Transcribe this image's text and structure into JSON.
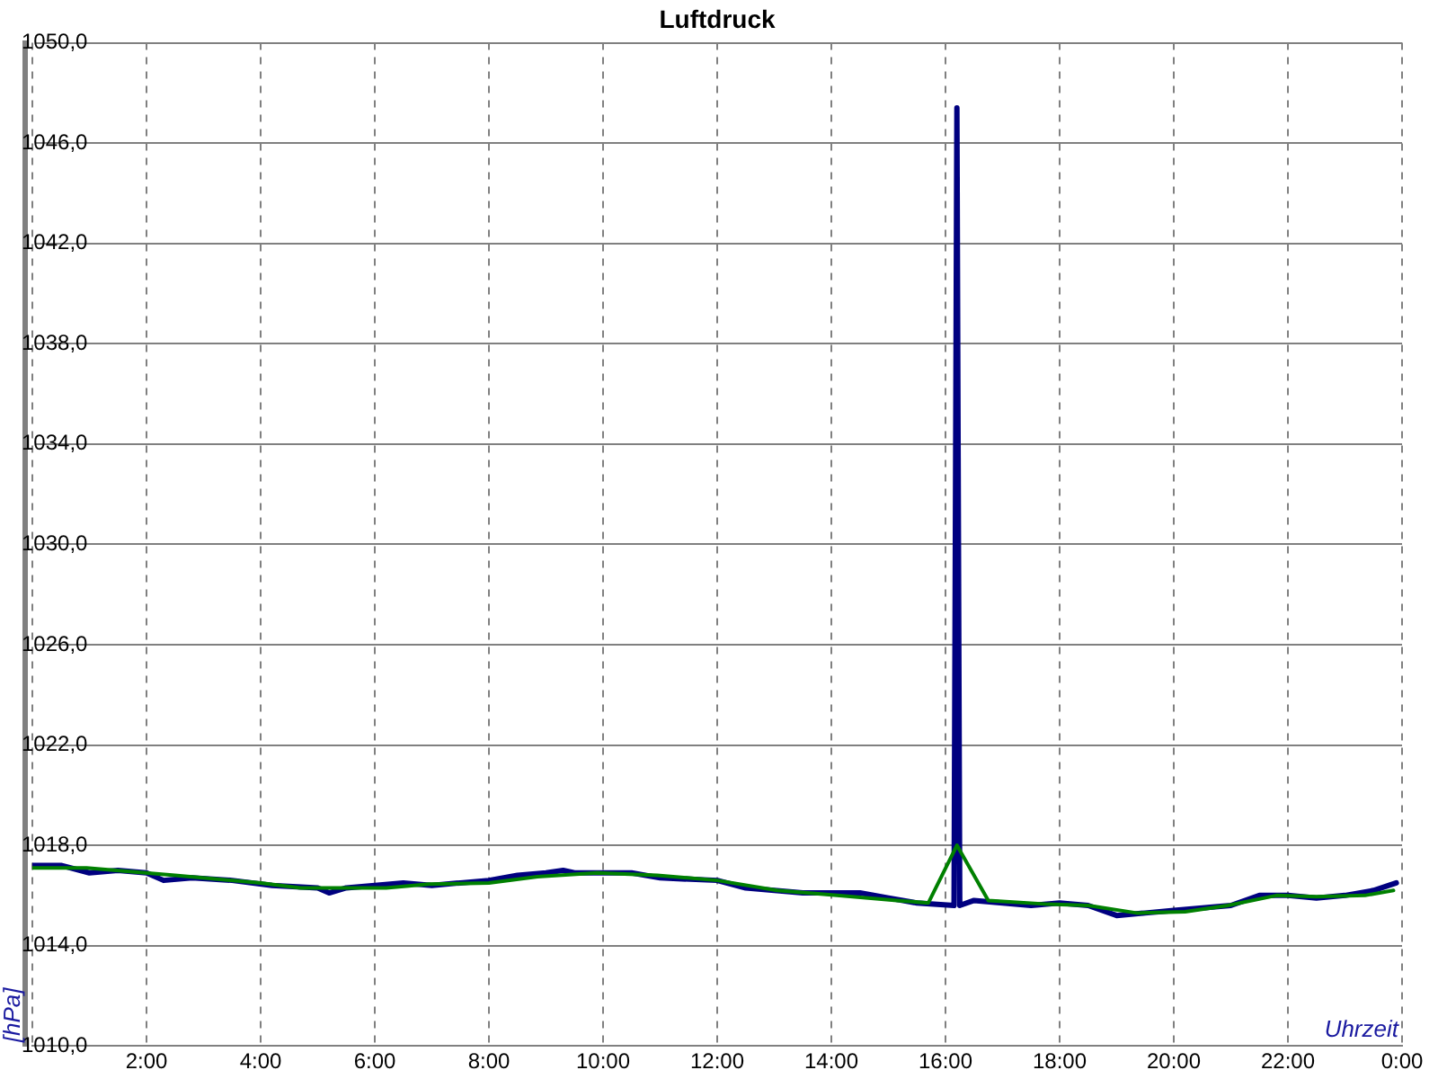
{
  "chart_data": {
    "type": "line",
    "title": "Luftdruck",
    "xlabel": "Uhrzeit",
    "ylabel": "[hPa]",
    "xlim": [
      0,
      24
    ],
    "xticks": [
      {
        "value": 0,
        "label": null
      },
      {
        "value": 2,
        "label": "2:00"
      },
      {
        "value": 4,
        "label": "4:00"
      },
      {
        "value": 6,
        "label": "6:00"
      },
      {
        "value": 8,
        "label": "8:00"
      },
      {
        "value": 10,
        "label": "10:00"
      },
      {
        "value": 12,
        "label": "12:00"
      },
      {
        "value": 14,
        "label": "14:00"
      },
      {
        "value": 16,
        "label": "16:00"
      },
      {
        "value": 18,
        "label": "18:00"
      },
      {
        "value": 20,
        "label": "20:00"
      },
      {
        "value": 22,
        "label": "22:00"
      },
      {
        "value": 24,
        "label": "0:00"
      }
    ],
    "ylim": [
      1010,
      1050
    ],
    "yticks": [
      {
        "value": 1010,
        "label": "1010,0"
      },
      {
        "value": 1014,
        "label": "1014,0"
      },
      {
        "value": 1018,
        "label": "1018,0"
      },
      {
        "value": 1022,
        "label": "1022,0"
      },
      {
        "value": 1026,
        "label": "1026,0"
      },
      {
        "value": 1030,
        "label": "1030,0"
      },
      {
        "value": 1034,
        "label": "1034,0"
      },
      {
        "value": 1038,
        "label": "1038,0"
      },
      {
        "value": 1042,
        "label": "1042,0"
      },
      {
        "value": 1046,
        "label": "1046,0"
      },
      {
        "value": 1050,
        "label": "1050,0"
      }
    ],
    "grid": true,
    "legend": false,
    "marker": "none",
    "line_style": "solid",
    "series": [
      {
        "color": "#000080",
        "x": [
          0,
          0.5,
          1,
          1.5,
          2,
          2.3,
          2.8,
          3.5,
          4.2,
          5,
          5.2,
          5.5,
          6,
          6.5,
          7,
          7.5,
          8,
          8.5,
          9,
          9.3,
          9.5,
          10.5,
          11,
          12,
          12.5,
          13,
          13.5,
          14,
          14.5,
          15,
          15.5,
          16.15,
          16.2,
          16.25,
          16.5,
          17,
          17.5,
          18,
          18.5,
          19,
          19.5,
          20,
          20.5,
          21,
          21.5,
          22,
          22.5,
          23,
          23.5,
          23.9
        ],
        "values": [
          1017.2,
          1017.2,
          1016.9,
          1017.0,
          1016.9,
          1016.6,
          1016.7,
          1016.6,
          1016.4,
          1016.3,
          1016.1,
          1016.3,
          1016.4,
          1016.5,
          1016.4,
          1016.5,
          1016.6,
          1016.8,
          1016.9,
          1017.0,
          1016.9,
          1016.9,
          1016.7,
          1016.6,
          1016.3,
          1016.2,
          1016.1,
          1016.1,
          1016.1,
          1015.9,
          1015.7,
          1015.6,
          1047.4,
          1015.6,
          1015.8,
          1015.7,
          1015.6,
          1015.7,
          1015.6,
          1015.2,
          1015.3,
          1015.4,
          1015.5,
          1015.6,
          1016.0,
          1016.0,
          1015.9,
          1016.0,
          1016.2,
          1016.5
        ]
      },
      {
        "color": "#008000",
        "x": [
          0,
          0.95,
          2.5,
          4,
          4.7,
          6.2,
          6.95,
          8,
          8.85,
          9.9,
          10.95,
          12,
          13.05,
          14.1,
          15.15,
          15.7,
          16.2,
          16.75,
          17.8,
          18.5,
          19.35,
          20.2,
          20.95,
          21.8,
          22.5,
          23.35,
          23.85
        ],
        "values": [
          1017.1,
          1017.1,
          1016.8,
          1016.5,
          1016.3,
          1016.3,
          1016.45,
          1016.5,
          1016.75,
          1016.9,
          1016.8,
          1016.6,
          1016.2,
          1016.0,
          1015.8,
          1015.7,
          1018.0,
          1015.8,
          1015.65,
          1015.6,
          1015.3,
          1015.35,
          1015.6,
          1016.0,
          1015.95,
          1016.0,
          1016.2
        ]
      }
    ]
  }
}
